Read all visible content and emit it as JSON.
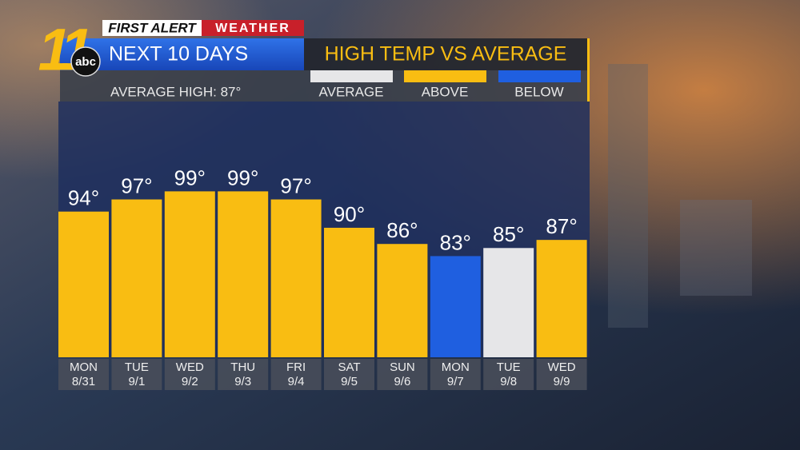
{
  "brand": {
    "channel": "11",
    "network": "abc",
    "first_alert": "FIRST ALERT",
    "weather": "WEATHER"
  },
  "chart_data": {
    "type": "bar",
    "title": "NEXT 10 DAYS",
    "subtitle": "HIGH TEMP VS AVERAGE",
    "annotation": "AVERAGE HIGH: 87°",
    "legend": [
      {
        "label": "AVERAGE",
        "color": "#e6e6e8"
      },
      {
        "label": "ABOVE",
        "color": "#f9bd12"
      },
      {
        "label": "BELOW",
        "color": "#1f5fe0"
      }
    ],
    "categories": [
      "MON",
      "TUE",
      "WED",
      "THU",
      "FRI",
      "SAT",
      "SUN",
      "MON",
      "TUE",
      "WED"
    ],
    "dates": [
      "8/31",
      "9/1",
      "9/2",
      "9/3",
      "9/4",
      "9/5",
      "9/6",
      "9/7",
      "9/8",
      "9/9"
    ],
    "values": [
      94,
      97,
      99,
      99,
      97,
      90,
      86,
      83,
      85,
      87
    ],
    "value_labels": [
      "94°",
      "97°",
      "99°",
      "99°",
      "97°",
      "90°",
      "86°",
      "83°",
      "85°",
      "87°"
    ],
    "colors": [
      "#f9bd12",
      "#f9bd12",
      "#f9bd12",
      "#f9bd12",
      "#f9bd12",
      "#f9bd12",
      "#f9bd12",
      "#1f5fe0",
      "#e6e6e8",
      "#f9bd12"
    ],
    "ylim": [
      58,
      121
    ]
  }
}
